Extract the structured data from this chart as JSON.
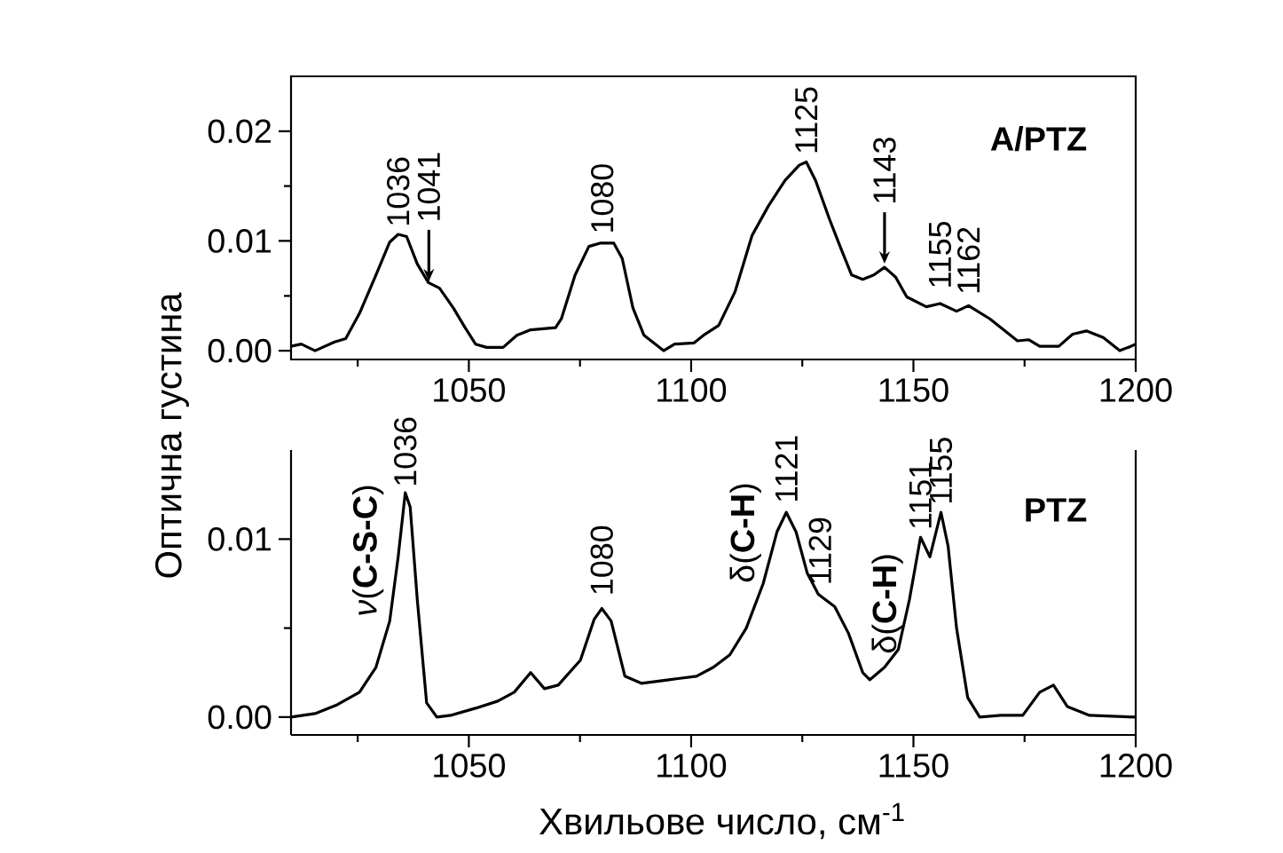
{
  "chart_data": [
    {
      "type": "line",
      "ylabel": "Оптична густина",
      "xlim": [
        1010,
        1200
      ],
      "ylim": [
        -0.0008,
        0.025
      ],
      "xticks": [
        {
          "value": 1025,
          "label": null
        },
        1050,
        {
          "value": 1075,
          "label": null
        },
        1100,
        {
          "value": 1125,
          "label": null
        },
        1150,
        {
          "value": 1175,
          "label": null
        },
        1200
      ],
      "yticks": [
        {
          "value": 0,
          "label": "0.00"
        },
        {
          "value": 0.005,
          "label": null
        },
        {
          "value": 0.01,
          "label": "0.01"
        },
        {
          "value": 0.015,
          "label": null
        },
        {
          "value": 0.02,
          "label": "0.02"
        }
      ],
      "series": [
        {
          "color": "#000000",
          "x": [
            1010,
            1012.3,
            1015.4,
            1019.8,
            1022.3,
            1025.4,
            1029.1,
            1032.2,
            1034.1,
            1036.0,
            1038.4,
            1040.9,
            1043.4,
            1046.5,
            1049.0,
            1051.5,
            1054.0,
            1057.7,
            1060.8,
            1063.9,
            1069.5,
            1070.8,
            1073.9,
            1077.0,
            1079.5,
            1082.6,
            1084.5,
            1086.9,
            1089.4,
            1093.8,
            1096.3,
            1100.6,
            1103.1,
            1106.2,
            1109.9,
            1113.7,
            1117.4,
            1121.1,
            1124.3,
            1125.9,
            1128.0,
            1131.1,
            1133.6,
            1136.1,
            1138.6,
            1141.1,
            1143.5,
            1146.0,
            1148.5,
            1152.9,
            1156.0,
            1159.7,
            1162.4,
            1167.2,
            1170.9,
            1173.4,
            1175.9,
            1178.4,
            1182.7,
            1185.8,
            1188.9,
            1192.7,
            1196.4,
            1198.9,
            1200
          ],
          "values": [
            0.0004,
            0.0006,
            0.0,
            0.0008,
            0.0011,
            0.0034,
            0.0069,
            0.0099,
            0.0106,
            0.0104,
            0.0079,
            0.0062,
            0.0057,
            0.0039,
            0.0022,
            0.0006,
            0.0003,
            0.0003,
            0.0014,
            0.0019,
            0.0021,
            0.0029,
            0.0069,
            0.0095,
            0.0098,
            0.0098,
            0.0084,
            0.0039,
            0.0014,
            0.0,
            0.0006,
            0.0007,
            0.0015,
            0.0023,
            0.0054,
            0.0105,
            0.0132,
            0.0155,
            0.0169,
            0.0172,
            0.0155,
            0.012,
            0.0094,
            0.0069,
            0.0065,
            0.0069,
            0.0076,
            0.0067,
            0.0049,
            0.004,
            0.0043,
            0.0036,
            0.0041,
            0.0029,
            0.0017,
            0.0009,
            0.001,
            0.0004,
            0.0004,
            0.0015,
            0.0018,
            0.0012,
            0.0,
            0.0004,
            0.0006
          ]
        }
      ],
      "annotations": [
        "A/PTZ",
        {
          "text": "1036",
          "x": 1034.1,
          "y": 0.0106
        },
        {
          "text": "1041",
          "x": 1041,
          "y": 0.006
        },
        {
          "text": "1080",
          "x": 1080,
          "y": 0.0098
        },
        {
          "text": "1125",
          "x": 1125.9,
          "y": 0.0172
        },
        {
          "text": "1143",
          "x": 1143.5,
          "y": 0.0076
        },
        {
          "text": "1155",
          "x": 1156,
          "y": 0.0043
        },
        {
          "text": "1162",
          "x": 1162.4,
          "y": 0.0041
        }
      ]
    },
    {
      "type": "line",
      "xlabel": "Хвильове число, см$^{-1}$",
      "xlim": [
        1010,
        1200
      ],
      "ylim": [
        -0.001,
        0.015
      ],
      "xticks": [
        {
          "value": 1025,
          "label": null
        },
        1050,
        {
          "value": 1075,
          "label": null
        },
        1100,
        {
          "value": 1125,
          "label": null
        },
        1150,
        {
          "value": 1175,
          "label": null
        },
        1200
      ],
      "yticks": [
        {
          "value": 0,
          "label": "0.00"
        },
        {
          "value": 0.005,
          "label": null
        },
        {
          "value": 0.01,
          "label": "0.01"
        }
      ],
      "series": [
        {
          "color": "#000000",
          "x": [
            1010,
            1015.4,
            1020.4,
            1025.4,
            1029.1,
            1032.2,
            1034.1,
            1035.7,
            1036.8,
            1038.4,
            1040.5,
            1042.8,
            1045.9,
            1051.5,
            1056.5,
            1060.2,
            1063.9,
            1067.0,
            1070.1,
            1075.1,
            1078.2,
            1079.9,
            1082.0,
            1085.1,
            1088.8,
            1095.0,
            1101.2,
            1105.0,
            1108.7,
            1112.4,
            1116.2,
            1119.3,
            1121.4,
            1123.6,
            1126.1,
            1128.6,
            1132.3,
            1135.4,
            1138.6,
            1140.2,
            1143.5,
            1146.6,
            1149.1,
            1151.6,
            1153.7,
            1156.2,
            1157.8,
            1159.7,
            1162.2,
            1164.9,
            1169.7,
            1174.6,
            1178.4,
            1181.5,
            1184.6,
            1189.6,
            1200
          ],
          "values": [
            0.0,
            0.0002,
            0.0007,
            0.0014,
            0.0028,
            0.0054,
            0.009,
            0.0126,
            0.0118,
            0.0066,
            0.0008,
            0.0,
            0.0001,
            0.0005,
            0.0009,
            0.0014,
            0.0025,
            0.0016,
            0.0018,
            0.0032,
            0.0055,
            0.0061,
            0.0054,
            0.0023,
            0.0019,
            0.0021,
            0.0023,
            0.0028,
            0.0035,
            0.005,
            0.0075,
            0.0104,
            0.0115,
            0.0104,
            0.0081,
            0.0069,
            0.0062,
            0.0047,
            0.0025,
            0.0021,
            0.0028,
            0.0038,
            0.0066,
            0.0101,
            0.009,
            0.0115,
            0.0096,
            0.005,
            0.0011,
            0.0,
            0.0001,
            0.0001,
            0.0014,
            0.0018,
            0.0006,
            0.0001,
            0.0
          ]
        }
      ],
      "annotations": [
        "PTZ",
        "*ν*(**C-S-C**)",
        {
          "text": "1036",
          "x": 1035.7,
          "y": 0.0126
        },
        {
          "text": "1080",
          "x": 1079.9,
          "y": 0.0061
        },
        "δ(**C-H**)",
        {
          "text": "1121",
          "x": 1121.4,
          "y": 0.0115
        },
        {
          "text": "1129",
          "x": 1129,
          "y": 0.0068
        },
        "δ(**C-H**)",
        {
          "text": "1151",
          "x": 1151.6,
          "y": 0.0101
        },
        {
          "text": "1155",
          "x": 1156.2,
          "y": 0.0115
        }
      ]
    }
  ]
}
